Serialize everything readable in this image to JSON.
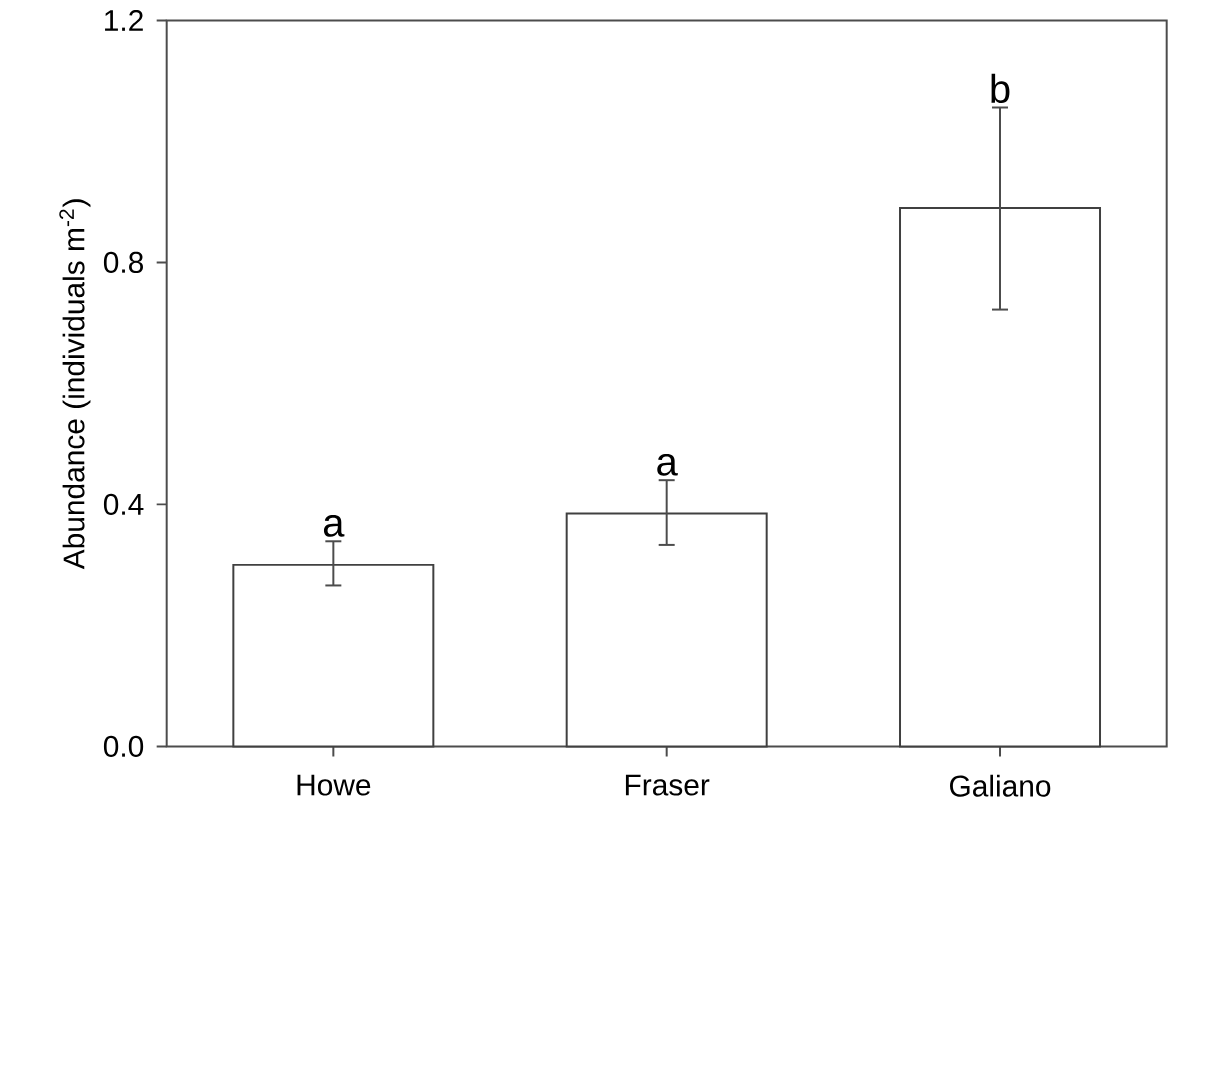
{
  "chart_data": {
    "type": "bar",
    "ylabel": "Abundance (individuals m$^{-2}$)",
    "categories": [
      "Howe",
      "Fraser",
      "Galiano"
    ],
    "values": [
      0.3,
      0.385,
      0.89
    ],
    "errors": [
      [
        0.266,
        0.339
      ],
      [
        0.333,
        0.44
      ],
      [
        0.722,
        1.056
      ]
    ],
    "color": "#ffffff",
    "ylim": [
      0,
      1.2
    ],
    "yticks": [
      {
        "value": 0,
        "label": "0.0"
      },
      {
        "value": 0.4,
        "label": "0.4"
      },
      {
        "value": 0.8,
        "label": "0.8"
      },
      {
        "value": 1.2,
        "label": "1.2"
      }
    ],
    "annotations": [
      {
        "text": "a",
        "x": "Howe",
        "y": 0.339
      },
      {
        "text": "a",
        "x": "Fraser",
        "y": 0.44
      },
      {
        "text": "b",
        "x": "Galiano",
        "y": 1.056
      }
    ]
  }
}
